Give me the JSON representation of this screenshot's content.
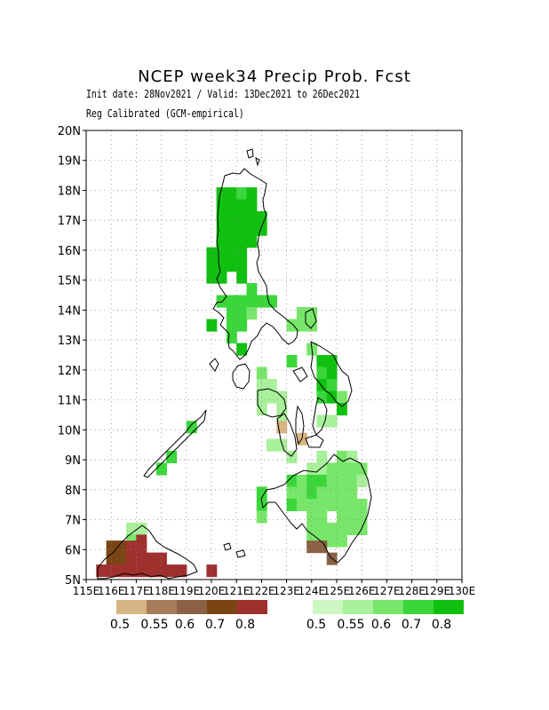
{
  "title": "NCEP week34 Precip Prob. Fcst",
  "subtitle_line1": "Init date: 28Nov2021 / Valid: 13Dec2021 to 26Dec2021",
  "subtitle_line2": "Reg Calibrated (GCM-empirical)",
  "map": {
    "lon_range": [
      115,
      130
    ],
    "lat_range": [
      5,
      20
    ],
    "lat_labels": [
      "5N",
      "6N",
      "7N",
      "8N",
      "9N",
      "10N",
      "11N",
      "12N",
      "13N",
      "14N",
      "15N",
      "16N",
      "17N",
      "18N",
      "19N",
      "20N"
    ],
    "lon_labels": [
      "115E",
      "116E",
      "117E",
      "118E",
      "119E",
      "120E",
      "121E",
      "122E",
      "123E",
      "124E",
      "125E",
      "126E",
      "127E",
      "128E",
      "129E",
      "130E"
    ]
  },
  "legend_dry": {
    "colors": [
      "#d8b383",
      "#a67c5b",
      "#8a6145",
      "#7a4414",
      "#a0302e"
    ],
    "labels": [
      "0.5",
      "0.55",
      "0.6",
      "0.7",
      "0.8"
    ]
  },
  "legend_wet": {
    "colors": [
      "#ccf7c2",
      "#a8f09a",
      "#78e66a",
      "#3ad63a",
      "#10c010"
    ],
    "labels": [
      "0.5",
      "0.55",
      "0.6",
      "0.7",
      "0.8"
    ]
  },
  "cells_wet": [
    [
      120.4,
      17.9,
      4
    ],
    [
      120.8,
      17.9,
      4
    ],
    [
      121.2,
      17.9,
      3
    ],
    [
      121.6,
      17.9,
      4
    ],
    [
      120.4,
      17.5,
      4
    ],
    [
      120.8,
      17.5,
      4
    ],
    [
      121.2,
      17.5,
      4
    ],
    [
      121.6,
      17.5,
      4
    ],
    [
      120.4,
      17.1,
      4
    ],
    [
      120.8,
      17.1,
      4
    ],
    [
      121.2,
      17.1,
      4
    ],
    [
      121.6,
      17.1,
      4
    ],
    [
      122.0,
      17.1,
      4
    ],
    [
      120.4,
      16.7,
      4
    ],
    [
      120.8,
      16.7,
      4
    ],
    [
      121.2,
      16.7,
      4
    ],
    [
      121.6,
      16.7,
      4
    ],
    [
      122.0,
      16.7,
      4
    ],
    [
      120.4,
      16.3,
      4
    ],
    [
      120.8,
      16.3,
      4
    ],
    [
      121.2,
      16.3,
      4
    ],
    [
      121.6,
      16.3,
      4
    ],
    [
      120.0,
      15.9,
      4
    ],
    [
      120.4,
      15.9,
      4
    ],
    [
      120.8,
      15.9,
      4
    ],
    [
      121.2,
      15.9,
      4
    ],
    [
      120.0,
      15.5,
      4
    ],
    [
      120.4,
      15.5,
      4
    ],
    [
      120.8,
      15.5,
      4
    ],
    [
      121.2,
      15.5,
      4
    ],
    [
      120.0,
      15.1,
      4
    ],
    [
      120.4,
      15.1,
      4
    ],
    [
      121.2,
      15.1,
      4
    ],
    [
      121.6,
      14.7,
      3
    ],
    [
      121.2,
      14.3,
      3
    ],
    [
      121.6,
      14.3,
      3
    ],
    [
      120.4,
      14.3,
      3
    ],
    [
      120.8,
      14.3,
      3
    ],
    [
      122.0,
      14.3,
      3
    ],
    [
      122.4,
      14.3,
      3
    ],
    [
      120.8,
      13.9,
      3
    ],
    [
      121.2,
      13.9,
      3
    ],
    [
      121.6,
      13.9,
      2
    ],
    [
      120.0,
      13.5,
      4
    ],
    [
      120.8,
      13.5,
      3
    ],
    [
      121.2,
      13.5,
      3
    ],
    [
      120.8,
      13.1,
      3
    ],
    [
      121.2,
      12.7,
      4
    ],
    [
      123.6,
      13.9,
      2
    ],
    [
      124.0,
      13.9,
      2
    ],
    [
      123.2,
      13.5,
      2
    ],
    [
      123.6,
      13.5,
      2
    ],
    [
      124.0,
      13.5,
      2
    ],
    [
      124.0,
      12.7,
      2
    ],
    [
      123.2,
      12.3,
      3
    ],
    [
      124.4,
      12.3,
      4
    ],
    [
      124.8,
      12.3,
      4
    ],
    [
      124.4,
      11.9,
      3
    ],
    [
      124.8,
      11.9,
      4
    ],
    [
      124.4,
      11.5,
      4
    ],
    [
      124.8,
      11.5,
      3
    ],
    [
      124.4,
      11.1,
      3
    ],
    [
      124.8,
      11.1,
      4
    ],
    [
      125.2,
      11.1,
      2
    ],
    [
      122.0,
      11.9,
      2
    ],
    [
      122.0,
      11.5,
      1
    ],
    [
      122.4,
      11.5,
      1
    ],
    [
      122.0,
      11.1,
      1
    ],
    [
      122.4,
      11.1,
      1
    ],
    [
      122.8,
      11.1,
      1
    ],
    [
      122.0,
      10.7,
      1
    ],
    [
      125.2,
      10.7,
      4
    ],
    [
      124.4,
      10.3,
      1
    ],
    [
      124.8,
      10.3,
      1
    ],
    [
      122.8,
      10.7,
      1
    ],
    [
      122.8,
      10.3,
      1
    ],
    [
      122.4,
      9.5,
      1
    ],
    [
      122.8,
      9.5,
      1
    ],
    [
      123.2,
      9.1,
      1
    ],
    [
      124.4,
      9.1,
      1
    ],
    [
      125.2,
      9.1,
      2
    ],
    [
      125.6,
      9.1,
      1
    ],
    [
      124.0,
      8.7,
      1
    ],
    [
      124.4,
      8.7,
      1
    ],
    [
      124.8,
      8.7,
      2
    ],
    [
      125.2,
      8.7,
      2
    ],
    [
      125.6,
      8.7,
      2
    ],
    [
      126.0,
      8.7,
      2
    ],
    [
      123.2,
      8.3,
      3
    ],
    [
      123.6,
      8.3,
      2
    ],
    [
      124.0,
      8.3,
      3
    ],
    [
      124.4,
      8.3,
      3
    ],
    [
      124.8,
      8.3,
      2
    ],
    [
      125.2,
      8.3,
      2
    ],
    [
      125.6,
      8.3,
      2
    ],
    [
      126.0,
      8.3,
      1
    ],
    [
      122.0,
      7.9,
      3
    ],
    [
      123.2,
      7.9,
      2
    ],
    [
      123.6,
      7.9,
      2
    ],
    [
      124.0,
      7.9,
      3
    ],
    [
      124.4,
      7.9,
      2
    ],
    [
      124.8,
      7.9,
      2
    ],
    [
      125.2,
      7.9,
      2
    ],
    [
      125.6,
      7.9,
      2
    ],
    [
      122.0,
      7.5,
      3
    ],
    [
      123.2,
      7.5,
      3
    ],
    [
      123.6,
      7.5,
      2
    ],
    [
      124.0,
      7.5,
      2
    ],
    [
      124.4,
      7.5,
      2
    ],
    [
      124.8,
      7.5,
      2
    ],
    [
      125.2,
      7.5,
      2
    ],
    [
      125.6,
      7.5,
      2
    ],
    [
      126.0,
      7.5,
      2
    ],
    [
      122.0,
      7.1,
      2
    ],
    [
      124.0,
      7.1,
      2
    ],
    [
      124.4,
      7.1,
      2
    ],
    [
      125.2,
      7.1,
      2
    ],
    [
      125.6,
      7.1,
      2
    ],
    [
      126.0,
      7.1,
      2
    ],
    [
      124.0,
      6.7,
      2
    ],
    [
      124.4,
      6.7,
      2
    ],
    [
      124.8,
      6.7,
      2
    ],
    [
      125.2,
      6.7,
      2
    ],
    [
      125.6,
      6.7,
      2
    ],
    [
      126.0,
      6.7,
      2
    ],
    [
      124.0,
      6.3,
      2
    ],
    [
      124.4,
      6.3,
      2
    ],
    [
      124.8,
      6.3,
      2
    ],
    [
      125.2,
      6.3,
      2
    ],
    [
      119.2,
      10.1,
      3
    ],
    [
      118.4,
      9.1,
      3
    ],
    [
      118.0,
      8.7,
      3
    ],
    [
      116.8,
      6.7,
      1
    ],
    [
      117.2,
      6.7,
      1
    ],
    [
      116.8,
      6.3,
      2
    ]
  ],
  "cells_dry": [
    [
      122.8,
      10.1,
      0
    ],
    [
      123.6,
      9.7,
      0
    ],
    [
      124.0,
      6.1,
      2
    ],
    [
      124.4,
      6.1,
      2
    ],
    [
      124.8,
      5.7,
      2
    ],
    [
      116.0,
      6.1,
      3
    ],
    [
      116.4,
      6.1,
      3
    ],
    [
      116.0,
      5.7,
      3
    ],
    [
      116.4,
      5.7,
      3
    ],
    [
      116.8,
      6.1,
      4
    ],
    [
      116.8,
      5.7,
      4
    ],
    [
      117.2,
      5.7,
      4
    ],
    [
      117.6,
      5.7,
      4
    ],
    [
      117.6,
      5.3,
      4
    ],
    [
      118.0,
      5.3,
      4
    ],
    [
      118.4,
      5.3,
      4
    ],
    [
      118.8,
      5.3,
      4
    ],
    [
      115.6,
      5.3,
      4
    ],
    [
      116.0,
      5.3,
      4
    ],
    [
      116.4,
      5.3,
      4
    ],
    [
      116.8,
      5.3,
      4
    ],
    [
      117.2,
      5.3,
      4
    ],
    [
      117.2,
      6.1,
      4
    ],
    [
      117.2,
      6.3,
      4
    ],
    [
      118.0,
      5.7,
      4
    ],
    [
      120.0,
      5.3,
      4
    ]
  ]
}
